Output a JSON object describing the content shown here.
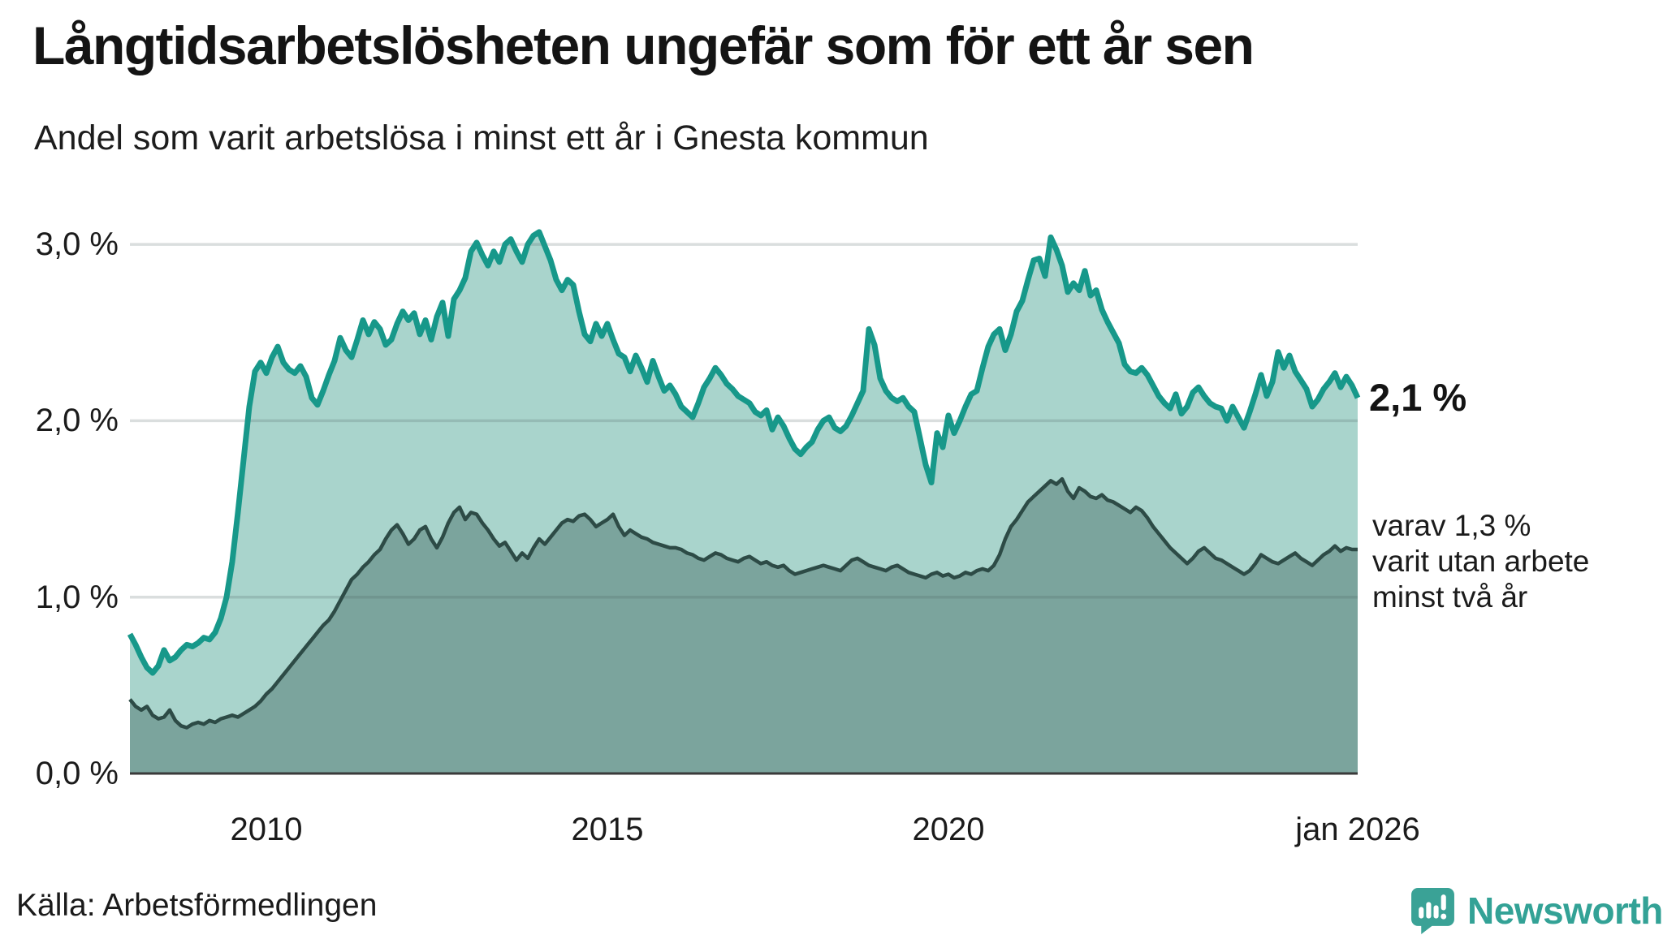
{
  "header": {
    "title": "Långtidsarbetslösheten ungefär som för ett år sen",
    "subtitle": "Andel som varit arbetslösa i minst ett år i Gnesta kommun"
  },
  "annotations": {
    "latest_value": "2,1 %",
    "note_lines": [
      "varav 1,3 %",
      "varit utan arbete",
      "minst två år"
    ]
  },
  "footer": {
    "source": "Källa: Arbetsförmedlingen"
  },
  "logo": {
    "text": "Newsworthy",
    "color": "#3aa296"
  },
  "chart_data": {
    "type": "area",
    "title": "Långtidsarbetslösheten ungefär som för ett år sen",
    "subtitle": "Andel som varit arbetslösa i minst ett år i Gnesta kommun",
    "unit": "%",
    "x_start_year": 2008,
    "x_step_months": 1,
    "ylim": [
      0,
      3.45
    ],
    "grid": "horizontal",
    "background": "#ffffff",
    "gridline_color": "#d9d9d9",
    "baseline_color": "#3a3a3a",
    "y_ticks": [
      {
        "value": 0,
        "label": "0,0 %"
      },
      {
        "value": 1,
        "label": "1,0 %"
      },
      {
        "value": 2,
        "label": "2,0 %"
      },
      {
        "value": 3,
        "label": "3,0 %"
      }
    ],
    "x_ticks": [
      {
        "year": 2010,
        "label": "2010"
      },
      {
        "year": 2015,
        "label": "2015"
      },
      {
        "year": 2020,
        "label": "2020"
      },
      {
        "year": 2026,
        "label": "jan 2026"
      }
    ],
    "series": [
      {
        "id": "minst-ett-ar",
        "name": "Arbetslösa minst ett år",
        "latest_label": "2,1 %",
        "color": "#17988a",
        "fill": "#a9d4cc",
        "values": [
          0.79,
          0.73,
          0.66,
          0.6,
          0.57,
          0.61,
          0.7,
          0.64,
          0.66,
          0.7,
          0.73,
          0.72,
          0.74,
          0.77,
          0.76,
          0.8,
          0.88,
          1.0,
          1.2,
          1.48,
          1.78,
          2.08,
          2.28,
          2.33,
          2.27,
          2.36,
          2.42,
          2.33,
          2.29,
          2.27,
          2.31,
          2.25,
          2.13,
          2.09,
          2.17,
          2.26,
          2.34,
          2.47,
          2.4,
          2.36,
          2.46,
          2.57,
          2.49,
          2.56,
          2.52,
          2.43,
          2.46,
          2.55,
          2.62,
          2.57,
          2.61,
          2.49,
          2.57,
          2.46,
          2.59,
          2.67,
          2.48,
          2.69,
          2.74,
          2.81,
          2.96,
          3.01,
          2.94,
          2.88,
          2.96,
          2.9,
          3.0,
          3.03,
          2.96,
          2.9,
          3.0,
          3.05,
          3.07,
          2.99,
          2.91,
          2.8,
          2.74,
          2.8,
          2.77,
          2.62,
          2.49,
          2.45,
          2.55,
          2.48,
          2.55,
          2.46,
          2.38,
          2.36,
          2.28,
          2.37,
          2.3,
          2.22,
          2.34,
          2.25,
          2.17,
          2.2,
          2.15,
          2.08,
          2.05,
          2.02,
          2.1,
          2.19,
          2.24,
          2.3,
          2.26,
          2.21,
          2.18,
          2.14,
          2.12,
          2.1,
          2.05,
          2.03,
          2.06,
          1.95,
          2.02,
          1.97,
          1.9,
          1.84,
          1.81,
          1.85,
          1.88,
          1.95,
          2.0,
          2.02,
          1.96,
          1.94,
          1.97,
          2.03,
          2.1,
          2.17,
          2.52,
          2.43,
          2.24,
          2.17,
          2.13,
          2.11,
          2.13,
          2.08,
          2.05,
          1.9,
          1.75,
          1.65,
          1.93,
          1.85,
          2.03,
          1.93,
          2.0,
          2.08,
          2.15,
          2.17,
          2.3,
          2.42,
          2.49,
          2.52,
          2.4,
          2.49,
          2.62,
          2.68,
          2.8,
          2.91,
          2.92,
          2.82,
          3.04,
          2.97,
          2.88,
          2.73,
          2.78,
          2.74,
          2.85,
          2.71,
          2.74,
          2.63,
          2.56,
          2.5,
          2.44,
          2.32,
          2.28,
          2.27,
          2.3,
          2.26,
          2.2,
          2.14,
          2.1,
          2.07,
          2.15,
          2.04,
          2.08,
          2.16,
          2.19,
          2.14,
          2.1,
          2.08,
          2.07,
          2.0,
          2.08,
          2.02,
          1.96,
          2.05,
          2.15,
          2.26,
          2.14,
          2.22,
          2.39,
          2.3,
          2.37,
          2.28,
          2.23,
          2.18,
          2.08,
          2.12,
          2.18,
          2.22,
          2.27,
          2.19,
          2.25,
          2.2,
          2.13
        ]
      },
      {
        "id": "minst-tva-ar",
        "name": "varav arbetslösa minst två år",
        "latest_label": "1,3 %",
        "color": "#2d4b46",
        "fill": "#7ba49d",
        "values": [
          0.42,
          0.38,
          0.36,
          0.38,
          0.33,
          0.31,
          0.32,
          0.36,
          0.3,
          0.27,
          0.26,
          0.28,
          0.29,
          0.28,
          0.3,
          0.29,
          0.31,
          0.32,
          0.33,
          0.32,
          0.34,
          0.36,
          0.38,
          0.41,
          0.45,
          0.48,
          0.52,
          0.56,
          0.6,
          0.64,
          0.68,
          0.72,
          0.76,
          0.8,
          0.84,
          0.87,
          0.92,
          0.98,
          1.04,
          1.1,
          1.13,
          1.17,
          1.2,
          1.24,
          1.27,
          1.33,
          1.38,
          1.41,
          1.36,
          1.3,
          1.33,
          1.38,
          1.4,
          1.33,
          1.28,
          1.34,
          1.42,
          1.48,
          1.51,
          1.44,
          1.48,
          1.47,
          1.42,
          1.38,
          1.33,
          1.29,
          1.31,
          1.26,
          1.21,
          1.25,
          1.22,
          1.28,
          1.33,
          1.3,
          1.34,
          1.38,
          1.42,
          1.44,
          1.43,
          1.46,
          1.47,
          1.44,
          1.4,
          1.42,
          1.44,
          1.47,
          1.4,
          1.35,
          1.38,
          1.36,
          1.34,
          1.33,
          1.31,
          1.3,
          1.29,
          1.28,
          1.28,
          1.27,
          1.25,
          1.24,
          1.22,
          1.21,
          1.23,
          1.25,
          1.24,
          1.22,
          1.21,
          1.2,
          1.22,
          1.23,
          1.21,
          1.19,
          1.2,
          1.18,
          1.17,
          1.18,
          1.15,
          1.13,
          1.14,
          1.15,
          1.16,
          1.17,
          1.18,
          1.17,
          1.16,
          1.15,
          1.18,
          1.21,
          1.22,
          1.2,
          1.18,
          1.17,
          1.16,
          1.15,
          1.17,
          1.18,
          1.16,
          1.14,
          1.13,
          1.12,
          1.11,
          1.13,
          1.14,
          1.12,
          1.13,
          1.11,
          1.12,
          1.14,
          1.13,
          1.15,
          1.16,
          1.15,
          1.18,
          1.24,
          1.33,
          1.4,
          1.44,
          1.49,
          1.54,
          1.57,
          1.6,
          1.63,
          1.66,
          1.64,
          1.67,
          1.6,
          1.56,
          1.62,
          1.6,
          1.57,
          1.56,
          1.58,
          1.55,
          1.54,
          1.52,
          1.5,
          1.48,
          1.51,
          1.49,
          1.45,
          1.4,
          1.36,
          1.32,
          1.28,
          1.25,
          1.22,
          1.19,
          1.22,
          1.26,
          1.28,
          1.25,
          1.22,
          1.21,
          1.19,
          1.17,
          1.15,
          1.13,
          1.15,
          1.19,
          1.24,
          1.22,
          1.2,
          1.19,
          1.21,
          1.23,
          1.25,
          1.22,
          1.2,
          1.18,
          1.21,
          1.24,
          1.26,
          1.29,
          1.26,
          1.28,
          1.27,
          1.27
        ]
      }
    ]
  }
}
